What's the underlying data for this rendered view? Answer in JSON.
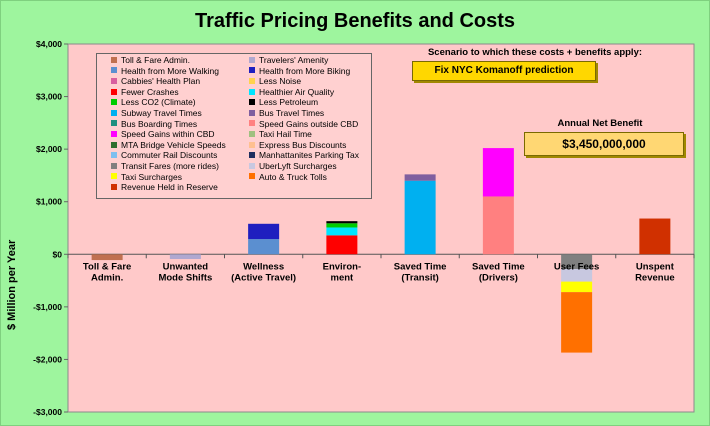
{
  "title": "Traffic Pricing Benefits and Costs",
  "scenario": {
    "label": "Scenario to which these costs + benefits apply:",
    "button": "Fix NYC Komanoff prediction"
  },
  "net_benefit": {
    "label": "Annual Net Benefit",
    "value": "$3,450,000,000"
  },
  "chart_data": {
    "type": "bar",
    "stacked": true,
    "ylabel": "$ Million per Year",
    "ylim": [
      -3000,
      4000
    ],
    "yticks": [
      -3000,
      -2000,
      -1000,
      0,
      1000,
      2000,
      3000,
      4000
    ],
    "ytick_labels": [
      "-$3,000",
      "-$2,000",
      "-$1,000",
      "$0",
      "$1,000",
      "$2,000",
      "$3,000",
      "$4,000"
    ],
    "grid": false,
    "legend_position": "top-left",
    "categories": [
      [
        "Toll & Fare",
        "Admin."
      ],
      [
        "Unwanted",
        "Mode Shifts"
      ],
      [
        "Wellness",
        "(Active Travel)"
      ],
      [
        "Environ-",
        "ment"
      ],
      [
        "Saved Time",
        "(Transit)"
      ],
      [
        "Saved Time",
        "(Drivers)"
      ],
      [
        "User Fees"
      ],
      [
        "Unspent",
        "Revenue"
      ]
    ],
    "series": [
      {
        "name": "Toll & Fare Admin.",
        "color": "#c07050",
        "values": [
          -110,
          0,
          0,
          0,
          0,
          0,
          0,
          0
        ]
      },
      {
        "name": "Travelers' Amenity",
        "color": "#b0a8d0",
        "values": [
          0,
          -90,
          0,
          0,
          0,
          0,
          0,
          0
        ]
      },
      {
        "name": "Health from More Walking",
        "color": "#5b8fd0",
        "values": [
          0,
          0,
          290,
          0,
          0,
          0,
          0,
          0
        ]
      },
      {
        "name": "Health from More Biking",
        "color": "#1f1fbf",
        "values": [
          0,
          0,
          290,
          0,
          0,
          0,
          0,
          0
        ]
      },
      {
        "name": "Cabbies' Health Plan",
        "color": "#d95f9f",
        "values": [
          0,
          0,
          0,
          0,
          0,
          0,
          0,
          0
        ]
      },
      {
        "name": "Less Noise",
        "color": "#ffd24d",
        "values": [
          0,
          0,
          0,
          0,
          0,
          0,
          0,
          0
        ]
      },
      {
        "name": "Fewer Crashes",
        "color": "#ff0000",
        "values": [
          0,
          0,
          0,
          360,
          0,
          0,
          0,
          0
        ]
      },
      {
        "name": "Healthier Air Quality",
        "color": "#00e5ff",
        "values": [
          0,
          0,
          0,
          150,
          0,
          0,
          0,
          0
        ]
      },
      {
        "name": "Less CO2 (Climate)",
        "color": "#00cc00",
        "values": [
          0,
          0,
          0,
          80,
          0,
          0,
          0,
          0
        ]
      },
      {
        "name": "Less Petroleum",
        "color": "#000000",
        "values": [
          0,
          0,
          0,
          40,
          0,
          0,
          0,
          0
        ]
      },
      {
        "name": "Subway Travel Times",
        "color": "#00b0f0",
        "values": [
          0,
          0,
          0,
          0,
          1400,
          0,
          0,
          0
        ]
      },
      {
        "name": "Bus Travel Times",
        "color": "#7f5f9f",
        "values": [
          0,
          0,
          0,
          0,
          120,
          0,
          0,
          0
        ]
      },
      {
        "name": "Bus Boarding Times",
        "color": "#1f8f7f",
        "values": [
          0,
          0,
          0,
          0,
          0,
          0,
          0,
          0
        ]
      },
      {
        "name": "Speed Gains outside CBD",
        "color": "#ff8080",
        "values": [
          0,
          0,
          0,
          0,
          0,
          1100,
          0,
          0
        ]
      },
      {
        "name": "Speed Gains within CBD",
        "color": "#ff00ff",
        "values": [
          0,
          0,
          0,
          0,
          0,
          920,
          0,
          0
        ]
      },
      {
        "name": "Taxi Hail Time",
        "color": "#a0c080",
        "values": [
          0,
          0,
          0,
          0,
          0,
          0,
          0,
          0
        ]
      },
      {
        "name": "MTA Bridge Vehicle Speeds",
        "color": "#2f6f2f",
        "values": [
          0,
          0,
          0,
          0,
          0,
          0,
          0,
          0
        ]
      },
      {
        "name": "Express Bus Discounts",
        "color": "#ffc090",
        "values": [
          0,
          0,
          0,
          0,
          0,
          0,
          0,
          0
        ]
      },
      {
        "name": "Commuter Rail Discounts",
        "color": "#7fbfef",
        "values": [
          0,
          0,
          0,
          0,
          0,
          0,
          0,
          0
        ]
      },
      {
        "name": "Manhattanites Parking Tax",
        "color": "#1f2f5f",
        "values": [
          0,
          0,
          0,
          0,
          0,
          0,
          0,
          0
        ]
      },
      {
        "name": "Transit Fares (more rides)",
        "color": "#808080",
        "values": [
          0,
          0,
          0,
          0,
          0,
          0,
          -280,
          0
        ]
      },
      {
        "name": "UberLyft Surcharges",
        "color": "#c8c8e0",
        "values": [
          0,
          0,
          0,
          0,
          0,
          0,
          -240,
          0
        ]
      },
      {
        "name": "Taxi Surcharges",
        "color": "#ffff00",
        "values": [
          0,
          0,
          0,
          0,
          0,
          0,
          -200,
          0
        ]
      },
      {
        "name": "Auto & Truck Tolls",
        "color": "#ff7000",
        "values": [
          0,
          0,
          0,
          0,
          0,
          0,
          -1150,
          0
        ]
      },
      {
        "name": "Revenue Held in Reserve",
        "color": "#d03000",
        "values": [
          0,
          0,
          0,
          0,
          0,
          0,
          0,
          680
        ]
      }
    ]
  }
}
